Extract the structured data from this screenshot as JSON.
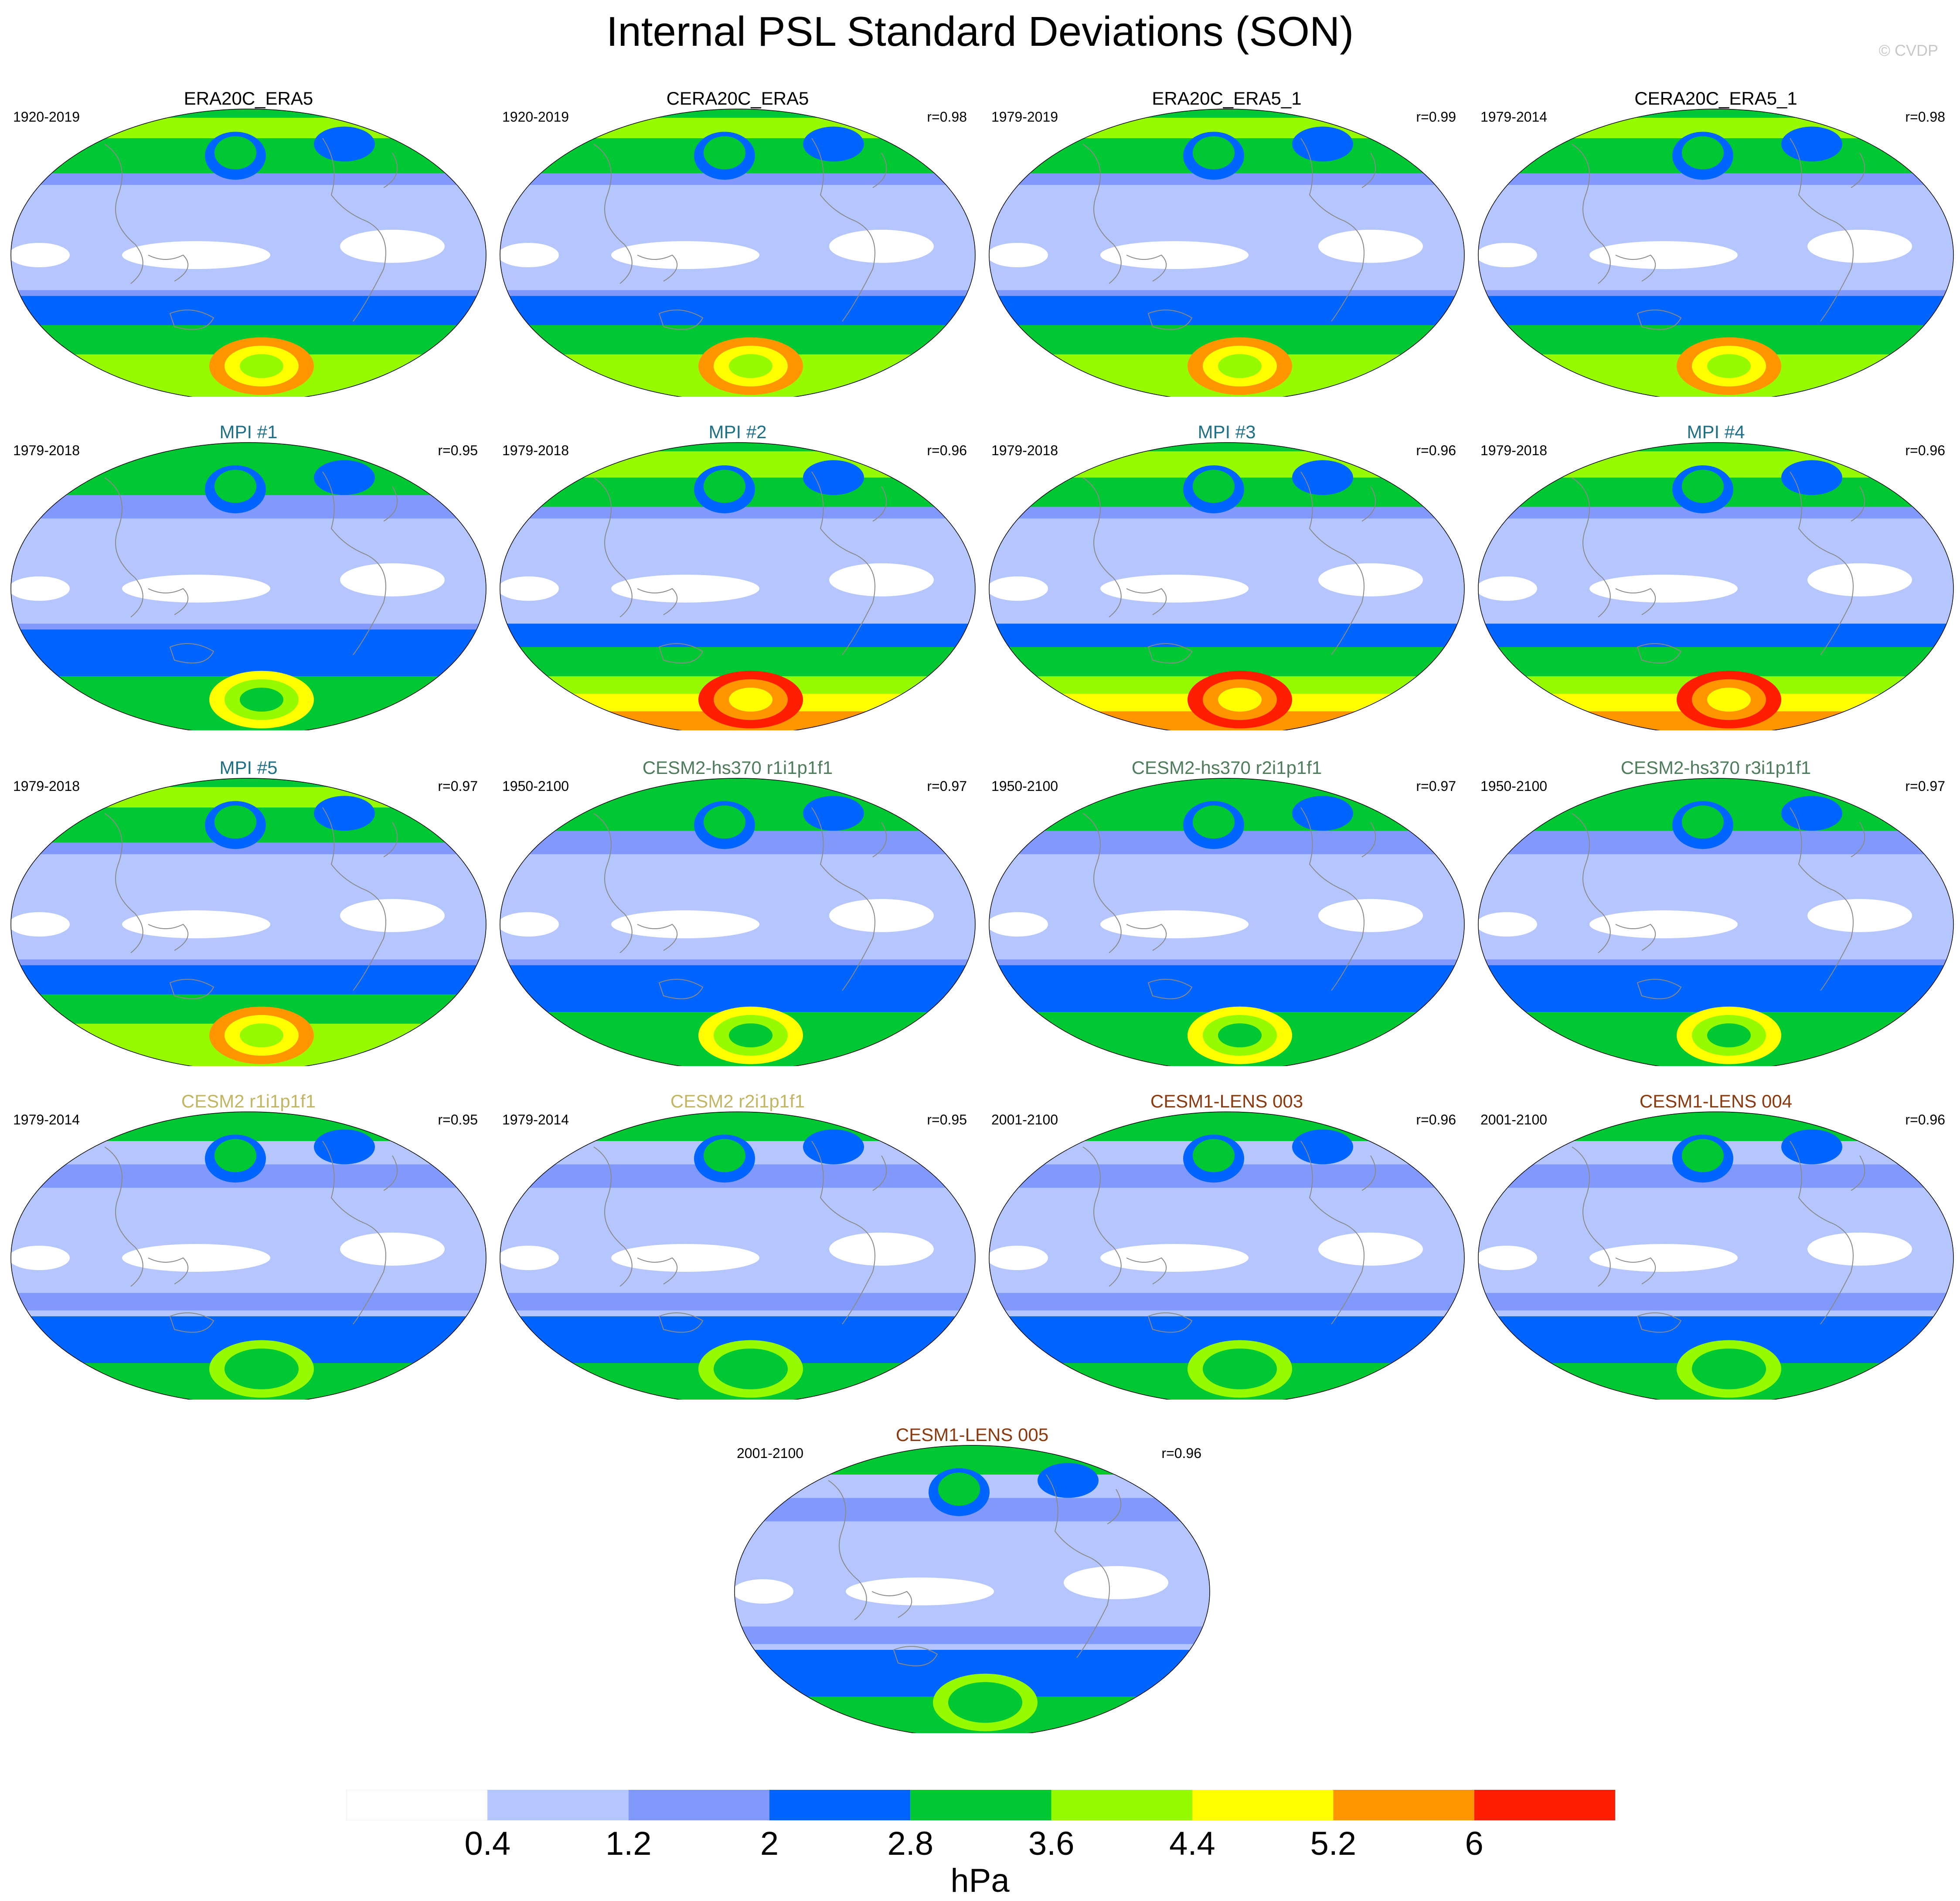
{
  "title": "Internal PSL Standard Deviations (SON)",
  "copyright": "© CVDP",
  "units": "hPa",
  "colorbar": {
    "levels": [
      "0.4",
      "1.2",
      "2",
      "2.8",
      "3.6",
      "4.4",
      "5.2",
      "6"
    ],
    "colors": [
      "#ffffff",
      "#b4c6fd",
      "#8199fc",
      "#0064ff",
      "#00c832",
      "#96fa00",
      "#ffff00",
      "#ff9600",
      "#ff1e00"
    ]
  },
  "colors": {
    "observation_title": "#000000",
    "mpi_title": "#1f6f87",
    "cesm2_hs370_title": "#4f7d5c",
    "cesm2_title": "#c2b563",
    "cesm1_lens_title": "#8b3a10",
    "coastline": "#8a8a8a"
  },
  "panels": [
    {
      "id": "era20c-era5",
      "title": "ERA20C_ERA5",
      "period": "1920-2019",
      "r": "",
      "style": "observation_title",
      "intensity": "strong"
    },
    {
      "id": "cera20c-era5",
      "title": "CERA20C_ERA5",
      "period": "1920-2019",
      "r": "r=0.98",
      "style": "observation_title",
      "intensity": "strong"
    },
    {
      "id": "era20c-era5-1",
      "title": "ERA20C_ERA5_1",
      "period": "1979-2019",
      "r": "r=0.99",
      "style": "observation_title",
      "intensity": "strong"
    },
    {
      "id": "cera20c-era5-1",
      "title": "CERA20C_ERA5_1",
      "period": "1979-2014",
      "r": "r=0.98",
      "style": "observation_title",
      "intensity": "strong"
    },
    {
      "id": "mpi-1",
      "title": "MPI #1",
      "period": "1979-2018",
      "r": "r=0.95",
      "style": "mpi_title",
      "intensity": "medium"
    },
    {
      "id": "mpi-2",
      "title": "MPI #2",
      "period": "1979-2018",
      "r": "r=0.96",
      "style": "mpi_title",
      "intensity": "extreme"
    },
    {
      "id": "mpi-3",
      "title": "MPI #3",
      "period": "1979-2018",
      "r": "r=0.96",
      "style": "mpi_title",
      "intensity": "extreme"
    },
    {
      "id": "mpi-4",
      "title": "MPI #4",
      "period": "1979-2018",
      "r": "r=0.96",
      "style": "mpi_title",
      "intensity": "extreme"
    },
    {
      "id": "mpi-5",
      "title": "MPI #5",
      "period": "1979-2018",
      "r": "r=0.97",
      "style": "mpi_title",
      "intensity": "strong"
    },
    {
      "id": "cesm2-hs370-r1",
      "title": "CESM2-hs370 r1i1p1f1",
      "period": "1950-2100",
      "r": "r=0.97",
      "style": "cesm2_hs370_title",
      "intensity": "medium"
    },
    {
      "id": "cesm2-hs370-r2",
      "title": "CESM2-hs370 r2i1p1f1",
      "period": "1950-2100",
      "r": "r=0.97",
      "style": "cesm2_hs370_title",
      "intensity": "medium"
    },
    {
      "id": "cesm2-hs370-r3",
      "title": "CESM2-hs370 r3i1p1f1",
      "period": "1950-2100",
      "r": "r=0.97",
      "style": "cesm2_hs370_title",
      "intensity": "medium"
    },
    {
      "id": "cesm2-r1",
      "title": "CESM2 r1i1p1f1",
      "period": "1979-2014",
      "r": "r=0.95",
      "style": "cesm2_title",
      "intensity": "weak"
    },
    {
      "id": "cesm2-r2",
      "title": "CESM2 r2i1p1f1",
      "period": "1979-2014",
      "r": "r=0.95",
      "style": "cesm2_title",
      "intensity": "weak"
    },
    {
      "id": "cesm1-lens-003",
      "title": "CESM1-LENS 003",
      "period": "2001-2100",
      "r": "r=0.96",
      "style": "cesm1_lens_title",
      "intensity": "weak"
    },
    {
      "id": "cesm1-lens-004",
      "title": "CESM1-LENS 004",
      "period": "2001-2100",
      "r": "r=0.96",
      "style": "cesm1_lens_title",
      "intensity": "weak"
    },
    {
      "id": "cesm1-lens-005",
      "title": "CESM1-LENS 005",
      "period": "2001-2100",
      "r": "r=0.96",
      "style": "cesm1_lens_title",
      "intensity": "weak"
    }
  ]
}
